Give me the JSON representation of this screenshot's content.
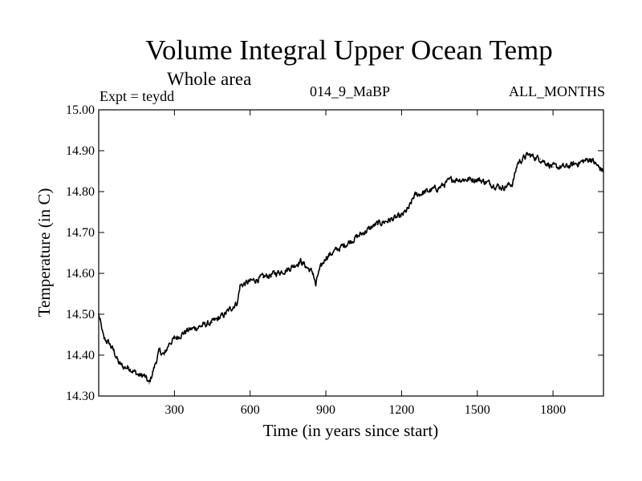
{
  "chart_data": {
    "type": "line",
    "title": "Volume Integral Upper Ocean Temp",
    "subtitle": "Whole area",
    "annotations": {
      "experiment": "Expt = teydd",
      "run": "014_9_MaBP",
      "months": "ALL_MONTHS"
    },
    "xlabel": "Time (in years since start)",
    "ylabel": "Temperature (in C)",
    "xlim": [
      0,
      2000
    ],
    "ylim": [
      14.3,
      15.0
    ],
    "xticks": [
      300,
      600,
      900,
      1200,
      1500,
      1800
    ],
    "xtick_labels": [
      "300",
      "600",
      "900",
      "1200",
      "1500",
      "1800"
    ],
    "yticks": [
      14.3,
      14.4,
      14.5,
      14.6,
      14.7,
      14.8,
      14.9,
      15.0
    ],
    "ytick_labels": [
      "14.30",
      "14.40",
      "14.50",
      "14.60",
      "14.70",
      "14.80",
      "14.90",
      "15.00"
    ],
    "grid": false,
    "series": [
      {
        "name": "Temperature",
        "x": [
          0,
          10,
          20,
          40,
          60,
          80,
          100,
          120,
          140,
          160,
          180,
          200,
          220,
          240,
          260,
          280,
          300,
          350,
          400,
          450,
          500,
          550,
          560,
          600,
          650,
          700,
          750,
          800,
          850,
          860,
          870,
          900,
          950,
          1000,
          1050,
          1100,
          1150,
          1200,
          1230,
          1250,
          1300,
          1350,
          1400,
          1450,
          1500,
          1550,
          1600,
          1640,
          1660,
          1700,
          1750,
          1800,
          1850,
          1900,
          1950,
          1980,
          2000
        ],
        "values": [
          14.5,
          14.47,
          14.44,
          14.43,
          14.41,
          14.38,
          14.37,
          14.37,
          14.36,
          14.35,
          14.35,
          14.33,
          14.37,
          14.41,
          14.4,
          14.43,
          14.44,
          14.46,
          14.47,
          14.48,
          14.5,
          14.53,
          14.57,
          14.58,
          14.59,
          14.6,
          14.61,
          14.63,
          14.6,
          14.57,
          14.6,
          14.64,
          14.66,
          14.68,
          14.7,
          14.72,
          14.73,
          14.74,
          14.76,
          14.79,
          14.8,
          14.81,
          14.83,
          14.83,
          14.83,
          14.82,
          14.81,
          14.82,
          14.87,
          14.89,
          14.88,
          14.86,
          14.86,
          14.87,
          14.88,
          14.86,
          14.85
        ]
      }
    ]
  }
}
